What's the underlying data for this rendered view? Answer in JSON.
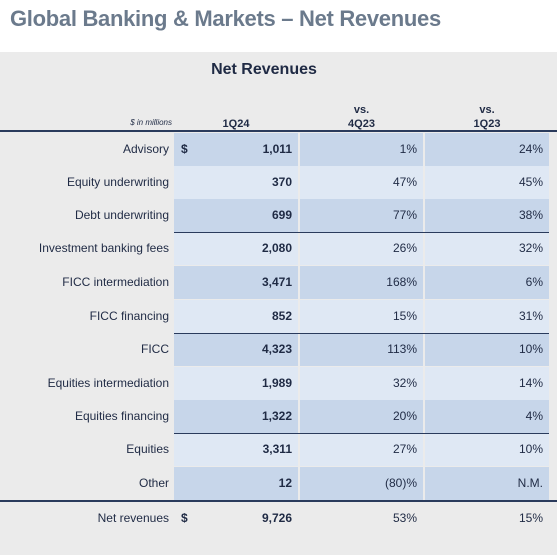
{
  "title": "Global Banking & Markets – Net Revenues",
  "table": {
    "title": "Net Revenues",
    "units": "$ in millions",
    "columns": {
      "col1": "1Q24",
      "col2_line1": "vs.",
      "col2_line2": "4Q23",
      "col3_line1": "vs.",
      "col3_line2": "1Q23"
    },
    "rows": [
      {
        "label": "Advisory",
        "currency": "$",
        "value": "1,011",
        "vs_4q23": "1%",
        "vs_1q23": "24%"
      },
      {
        "label": "Equity underwriting",
        "currency": "",
        "value": "370",
        "vs_4q23": "47%",
        "vs_1q23": "45%"
      },
      {
        "label": "Debt underwriting",
        "currency": "",
        "value": "699",
        "vs_4q23": "77%",
        "vs_1q23": "38%"
      },
      {
        "label": "Investment banking fees",
        "currency": "",
        "value": "2,080",
        "vs_4q23": "26%",
        "vs_1q23": "32%"
      },
      {
        "label": "FICC intermediation",
        "currency": "",
        "value": "3,471",
        "vs_4q23": "168%",
        "vs_1q23": "6%"
      },
      {
        "label": "FICC financing",
        "currency": "",
        "value": "852",
        "vs_4q23": "15%",
        "vs_1q23": "31%"
      },
      {
        "label": "FICC",
        "currency": "",
        "value": "4,323",
        "vs_4q23": "113%",
        "vs_1q23": "10%"
      },
      {
        "label": "Equities intermediation",
        "currency": "",
        "value": "1,989",
        "vs_4q23": "32%",
        "vs_1q23": "14%"
      },
      {
        "label": "Equities financing",
        "currency": "",
        "value": "1,322",
        "vs_4q23": "20%",
        "vs_1q23": "4%"
      },
      {
        "label": "Equities",
        "currency": "",
        "value": "3,311",
        "vs_4q23": "27%",
        "vs_1q23": "10%"
      },
      {
        "label": "Other",
        "currency": "",
        "value": "12",
        "vs_4q23": "(80)%",
        "vs_1q23": "N.M."
      },
      {
        "label": "Net revenues",
        "currency": "$",
        "value": "9,726",
        "vs_4q23": "53%",
        "vs_1q23": "15%"
      }
    ]
  }
}
